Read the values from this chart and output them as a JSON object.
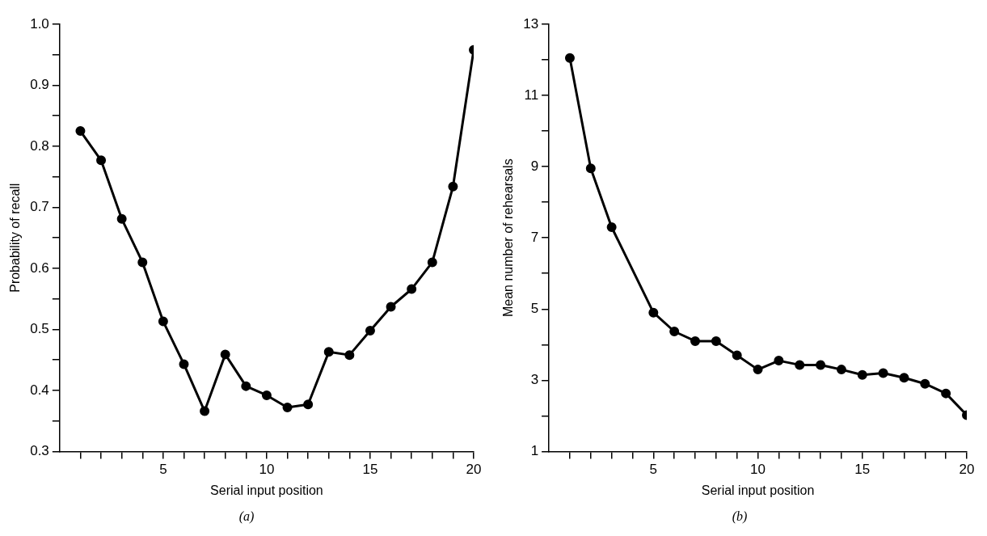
{
  "chart_data": [
    {
      "type": "line",
      "xlabel": "Serial input position",
      "ylabel": "Probability of recall",
      "annotations": [
        "(a)"
      ],
      "marker": "circle",
      "line_style": "solid",
      "x": [
        1,
        2,
        3,
        4,
        5,
        6,
        7,
        8,
        9,
        10,
        11,
        12,
        13,
        14,
        15,
        16,
        17,
        18,
        19,
        20
      ],
      "series": [
        {
          "color": "#000000",
          "values": [
            0.825,
            0.777,
            0.681,
            0.61,
            0.513,
            0.443,
            0.366,
            0.459,
            0.407,
            0.392,
            0.372,
            0.377,
            0.463,
            0.458,
            0.498,
            0.537,
            0.566,
            0.61,
            0.734,
            0.958
          ]
        }
      ],
      "xlim": [
        0,
        20
      ],
      "xticks": [
        {
          "value": 1,
          "label": null
        },
        {
          "value": 2,
          "label": null
        },
        {
          "value": 3,
          "label": null
        },
        {
          "value": 4,
          "label": null
        },
        5,
        {
          "value": 6,
          "label": null
        },
        {
          "value": 7,
          "label": null
        },
        {
          "value": 8,
          "label": null
        },
        {
          "value": 9,
          "label": null
        },
        10,
        {
          "value": 11,
          "label": null
        },
        {
          "value": 12,
          "label": null
        },
        {
          "value": 13,
          "label": null
        },
        {
          "value": 14,
          "label": null
        },
        15,
        {
          "value": 16,
          "label": null
        },
        {
          "value": 17,
          "label": null
        },
        {
          "value": 18,
          "label": null
        },
        {
          "value": 19,
          "label": null
        },
        20
      ],
      "ylim": [
        0.3,
        1.0
      ],
      "yticks": [
        {
          "value": 0.3,
          "label": "0.3"
        },
        {
          "value": 0.35,
          "label": null
        },
        {
          "value": 0.4,
          "label": "0.4"
        },
        {
          "value": 0.45,
          "label": null
        },
        {
          "value": 0.5,
          "label": "0.5"
        },
        {
          "value": 0.55,
          "label": null
        },
        {
          "value": 0.6,
          "label": "0.6"
        },
        {
          "value": 0.65,
          "label": null
        },
        {
          "value": 0.7,
          "label": "0.7"
        },
        {
          "value": 0.75,
          "label": null
        },
        {
          "value": 0.8,
          "label": "0.8"
        },
        {
          "value": 0.85,
          "label": null
        },
        {
          "value": 0.9,
          "label": "0.9"
        },
        {
          "value": 0.95,
          "label": null
        },
        {
          "value": 1.0,
          "label": "1.0"
        }
      ]
    },
    {
      "type": "line",
      "xlabel": "Serial input position",
      "ylabel": "Mean number of rehearsals",
      "annotations": [
        "(b)"
      ],
      "marker": "circle",
      "line_style": "solid",
      "x": [
        1,
        2,
        3,
        5,
        6,
        7,
        8,
        9,
        10,
        11,
        12,
        13,
        14,
        15,
        16,
        17,
        18,
        19,
        20
      ],
      "series": [
        {
          "color": "#000000",
          "values": [
            12.05,
            8.95,
            7.3,
            4.9,
            4.37,
            4.1,
            4.1,
            3.7,
            3.3,
            3.55,
            3.43,
            3.43,
            3.3,
            3.15,
            3.2,
            3.07,
            2.9,
            2.63,
            2.02
          ]
        }
      ],
      "xlim": [
        0,
        20
      ],
      "xticks": [
        {
          "value": 1,
          "label": null
        },
        {
          "value": 2,
          "label": null
        },
        {
          "value": 3,
          "label": null
        },
        {
          "value": 4,
          "label": null
        },
        5,
        {
          "value": 6,
          "label": null
        },
        {
          "value": 7,
          "label": null
        },
        {
          "value": 8,
          "label": null
        },
        {
          "value": 9,
          "label": null
        },
        10,
        {
          "value": 11,
          "label": null
        },
        {
          "value": 12,
          "label": null
        },
        {
          "value": 13,
          "label": null
        },
        {
          "value": 14,
          "label": null
        },
        15,
        {
          "value": 16,
          "label": null
        },
        {
          "value": 17,
          "label": null
        },
        {
          "value": 18,
          "label": null
        },
        {
          "value": 19,
          "label": null
        },
        20
      ],
      "ylim": [
        1,
        13
      ],
      "yticks": [
        1,
        {
          "value": 2,
          "label": null
        },
        3,
        {
          "value": 4,
          "label": null
        },
        5,
        {
          "value": 6,
          "label": null
        },
        7,
        {
          "value": 8,
          "label": null
        },
        9,
        {
          "value": 10,
          "label": null
        },
        11,
        {
          "value": 12,
          "label": null
        },
        13
      ]
    }
  ]
}
